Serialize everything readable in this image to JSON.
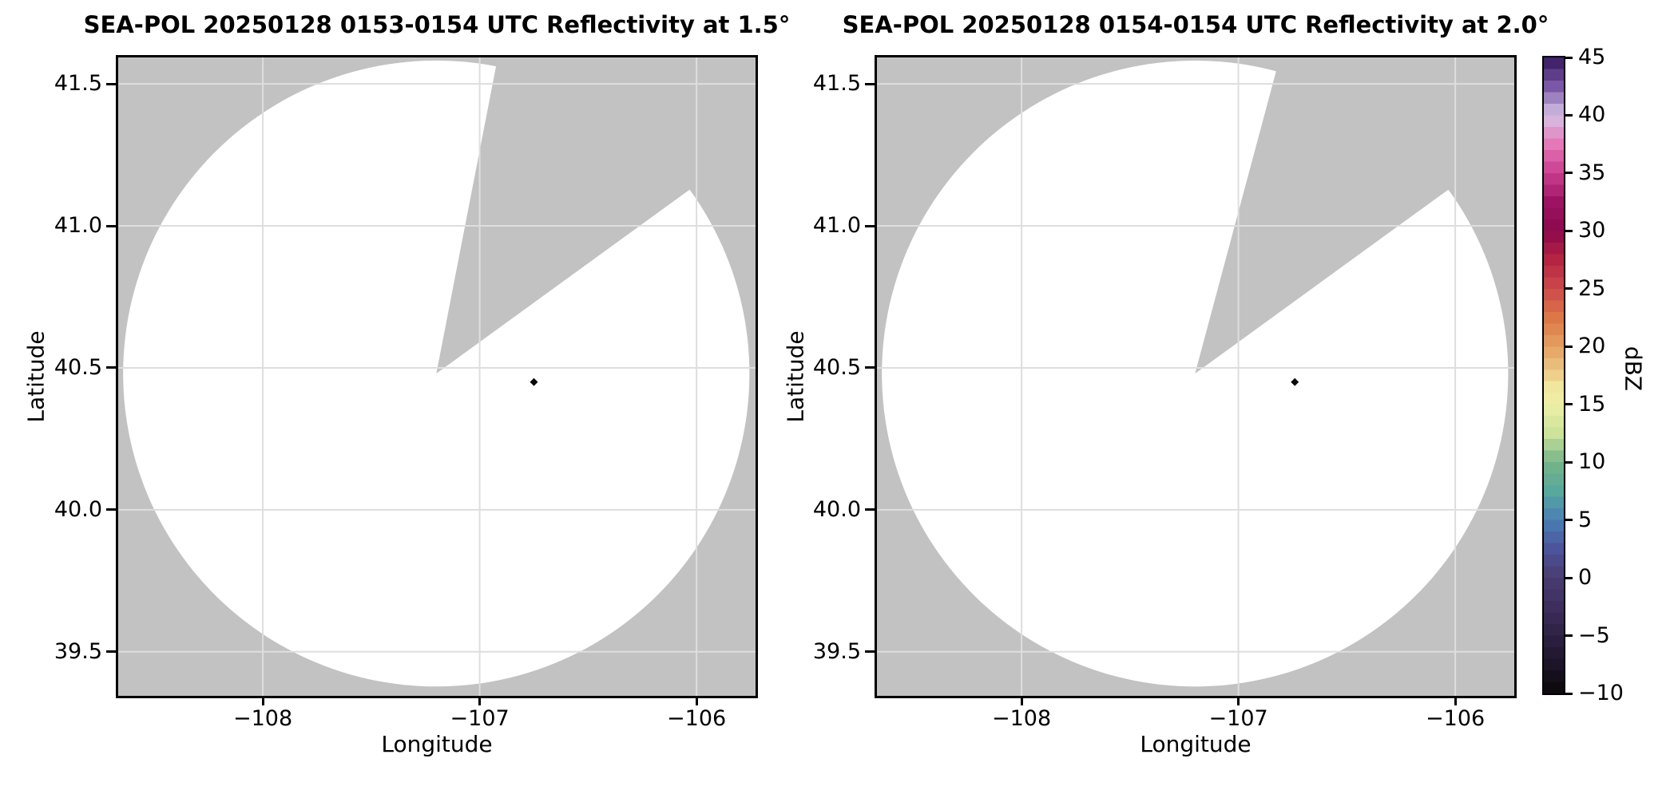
{
  "chart_data": {
    "type": "heatmap",
    "description": "Two radar PPI reflectivity panels (lat/lon map view) sharing one vertical dBZ colorbar; scanned area is an empty white disk with a missing azimuth sector (gray = no data), one tiny low-reflectivity echo marker in each panel.",
    "colors": {
      "axes_bg": "#c2c2c2",
      "grid": "#dedede",
      "frame": "#000000",
      "coverage_fill": "#ffffff",
      "marker": "#0a0a0a",
      "text": "#000000"
    },
    "panels": [
      {
        "title": "SEA-POL 20250128 0153-0154 UTC Reflectivity at 1.5°",
        "xlabel": "Longitude",
        "ylabel": "Latitude",
        "xlim": [
          -108.667,
          -105.728
        ],
        "ylim": [
          39.345,
          41.593
        ],
        "xtick_values": [
          -108,
          -107,
          -106
        ],
        "xtick_labels": [
          "−108",
          "−107",
          "−106"
        ],
        "ytick_values": [
          41.5,
          41.0,
          40.5,
          40.0,
          39.5
        ],
        "ytick_labels": [
          "41.5",
          "41.0",
          "40.5",
          "40.0",
          "39.5"
        ],
        "grid": true,
        "radar": {
          "center_lon": -107.2,
          "center_lat": 40.48,
          "radius_lon_deg": 1.444,
          "radius_lat_deg": 1.102,
          "missing_sector_azimuth_deg": [
            11,
            54
          ]
        },
        "echo_points": [
          {
            "lon": -106.75,
            "lat": 40.45,
            "value_dbz_approx": -10
          }
        ]
      },
      {
        "title": "SEA-POL 20250128 0154-0154 UTC Reflectivity at 2.0°",
        "xlabel": "Longitude",
        "ylabel": "Latitude",
        "xlim": [
          -108.667,
          -105.728
        ],
        "ylim": [
          39.345,
          41.593
        ],
        "xtick_values": [
          -108,
          -107,
          -106
        ],
        "xtick_labels": [
          "−108",
          "−107",
          "−106"
        ],
        "ytick_values": [
          41.5,
          41.0,
          40.5,
          40.0,
          39.5
        ],
        "ytick_labels": [
          "41.5",
          "41.0",
          "40.5",
          "40.0",
          "39.5"
        ],
        "grid": true,
        "radar": {
          "center_lon": -107.2,
          "center_lat": 40.48,
          "radius_lon_deg": 1.444,
          "radius_lat_deg": 1.102,
          "missing_sector_azimuth_deg": [
            15,
            54
          ]
        },
        "echo_points": [
          {
            "lon": -106.74,
            "lat": 40.45,
            "value_dbz_approx": -10
          }
        ]
      }
    ],
    "colorbar": {
      "label": "dBZ",
      "vmin": -10,
      "vmax": 45,
      "tick_values": [
        45,
        40,
        35,
        30,
        25,
        20,
        15,
        10,
        5,
        0,
        -5,
        -10
      ],
      "tick_labels": [
        "45",
        "40",
        "35",
        "30",
        "25",
        "20",
        "15",
        "10",
        "5",
        "0",
        "−5",
        "−10"
      ],
      "n_discrete_bands": 55,
      "cmap_stops": [
        {
          "v": -10.0,
          "c": "#0a0709"
        },
        {
          "v": -7.5,
          "c": "#1c1428"
        },
        {
          "v": -5.0,
          "c": "#2e2144"
        },
        {
          "v": -2.5,
          "c": "#3d2e5e"
        },
        {
          "v": 0.0,
          "c": "#4a3c71"
        },
        {
          "v": 2.5,
          "c": "#4c549b"
        },
        {
          "v": 5.0,
          "c": "#4a7fb4"
        },
        {
          "v": 7.5,
          "c": "#58a89c"
        },
        {
          "v": 10.0,
          "c": "#76b588"
        },
        {
          "v": 12.5,
          "c": "#cde29a"
        },
        {
          "v": 15.0,
          "c": "#eef0a6"
        },
        {
          "v": 16.5,
          "c": "#f1e69d"
        },
        {
          "v": 18.0,
          "c": "#ecc583"
        },
        {
          "v": 20.0,
          "c": "#e5a061"
        },
        {
          "v": 22.5,
          "c": "#dc7747"
        },
        {
          "v": 25.0,
          "c": "#cc4a4b"
        },
        {
          "v": 27.5,
          "c": "#b52443"
        },
        {
          "v": 30.0,
          "c": "#8a094c"
        },
        {
          "v": 32.5,
          "c": "#9d1363"
        },
        {
          "v": 35.0,
          "c": "#ca3d90"
        },
        {
          "v": 37.5,
          "c": "#e478b8"
        },
        {
          "v": 40.0,
          "c": "#d5c2e4"
        },
        {
          "v": 42.5,
          "c": "#7a57a7"
        },
        {
          "v": 45.0,
          "c": "#33175c"
        }
      ]
    }
  }
}
